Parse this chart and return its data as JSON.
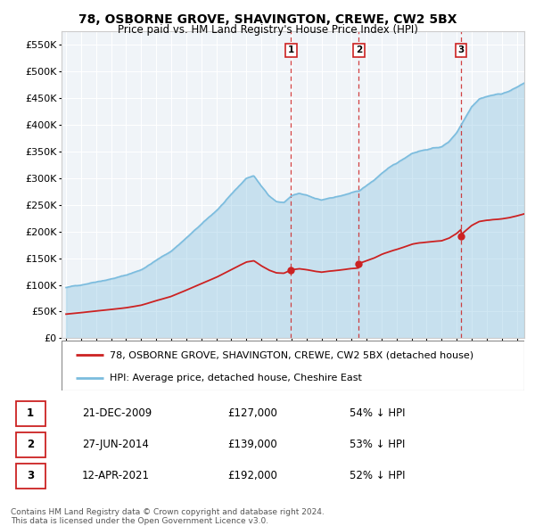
{
  "title": "78, OSBORNE GROVE, SHAVINGTON, CREWE, CW2 5BX",
  "subtitle": "Price paid vs. HM Land Registry's House Price Index (HPI)",
  "hpi_color": "#7bbcde",
  "hpi_fill": "#d6eaf8",
  "sale_color": "#cc2222",
  "vline_color": "#cc2222",
  "plot_bg": "#f0f4f8",
  "grid_color": "#ffffff",
  "ylim": [
    0,
    575000
  ],
  "yticks": [
    0,
    50000,
    100000,
    150000,
    200000,
    250000,
    300000,
    350000,
    400000,
    450000,
    500000,
    550000
  ],
  "ytick_labels": [
    "£0",
    "£50K",
    "£100K",
    "£150K",
    "£200K",
    "£250K",
    "£300K",
    "£350K",
    "£400K",
    "£450K",
    "£500K",
    "£550K"
  ],
  "xlim_start": 1994.7,
  "xlim_end": 2025.5,
  "sale_dates": [
    2009.97,
    2014.49,
    2021.28
  ],
  "sale_prices": [
    127000,
    139000,
    192000
  ],
  "sale_labels": [
    "1",
    "2",
    "3"
  ],
  "vline_x": [
    2009.97,
    2014.49,
    2021.28
  ],
  "legend_sale": "78, OSBORNE GROVE, SHAVINGTON, CREWE, CW2 5BX (detached house)",
  "legend_hpi": "HPI: Average price, detached house, Cheshire East",
  "table_rows": [
    [
      "1",
      "21-DEC-2009",
      "£127,000",
      "54% ↓ HPI"
    ],
    [
      "2",
      "27-JUN-2014",
      "£139,000",
      "53% ↓ HPI"
    ],
    [
      "3",
      "12-APR-2021",
      "£192,000",
      "52% ↓ HPI"
    ]
  ],
  "footnote": "Contains HM Land Registry data © Crown copyright and database right 2024.\nThis data is licensed under the Open Government Licence v3.0."
}
